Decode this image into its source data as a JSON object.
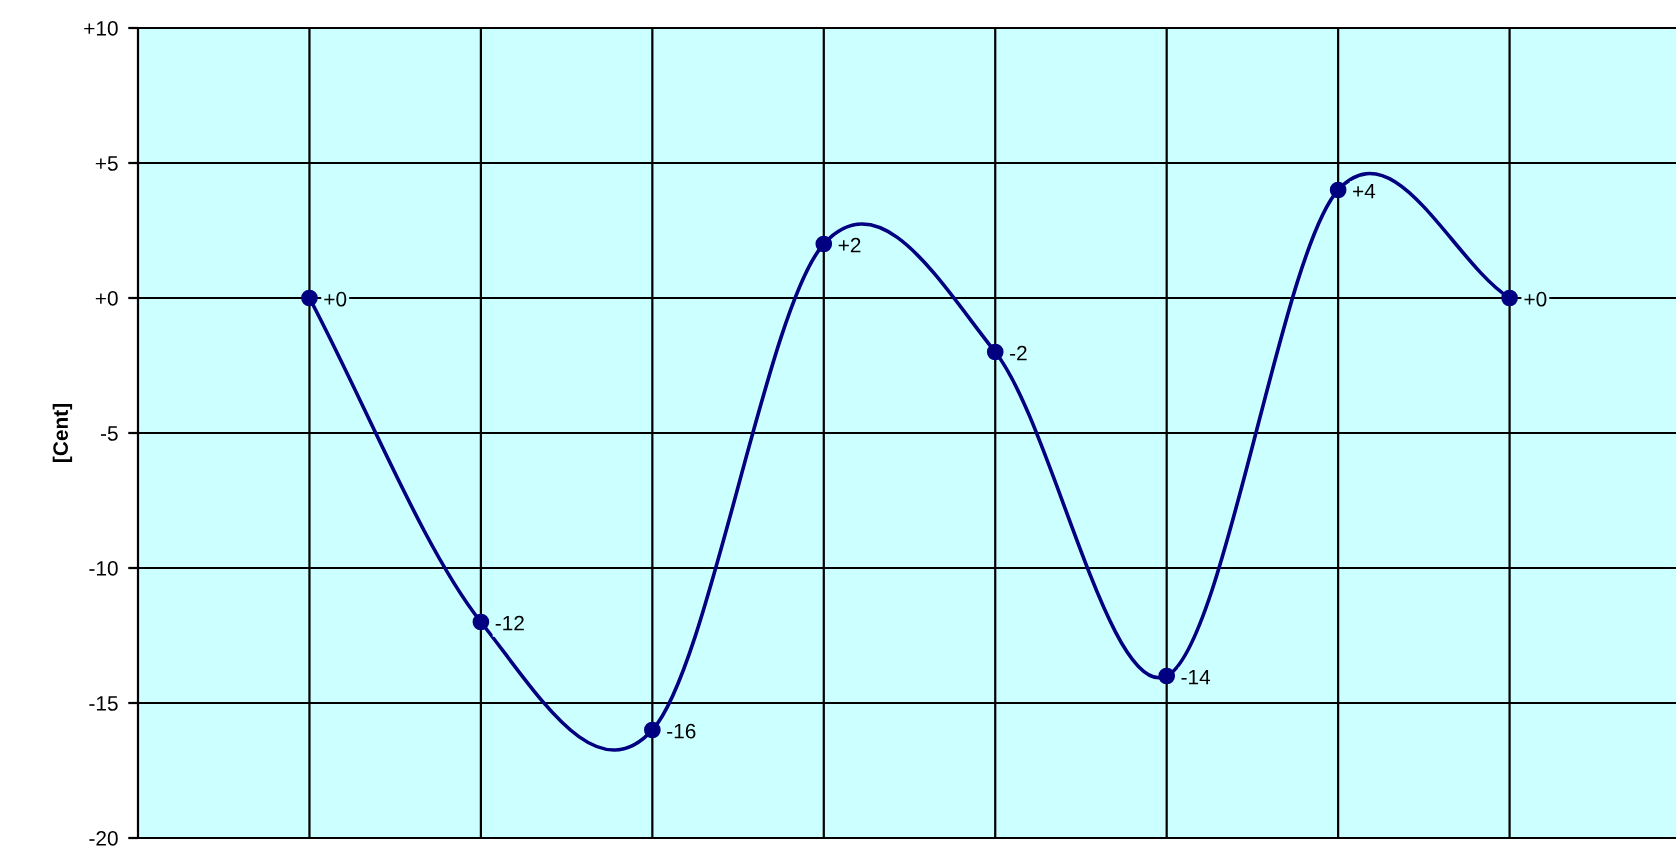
{
  "chart_data": {
    "type": "line",
    "ylabel": "[Cent]",
    "categories": [
      null,
      null,
      null,
      null,
      null,
      null,
      null,
      null
    ],
    "series": [
      {
        "color": "#000080",
        "values": [
          0,
          -12,
          -16,
          2,
          -2,
          -14,
          4,
          0
        ],
        "value_labels": [
          "+0",
          "-12",
          "-16",
          "+2",
          "-2",
          "-14",
          "+4",
          "+0"
        ]
      }
    ],
    "ylim": [
      -20,
      10
    ],
    "yticks": [
      {
        "value": 10,
        "label": "+10"
      },
      {
        "value": 5,
        "label": "+5"
      },
      {
        "value": 0,
        "label": "+0"
      },
      -5,
      -10,
      -15,
      -20
    ],
    "grid": true,
    "marker": "circle",
    "line_style": "solid",
    "legend": false
  }
}
